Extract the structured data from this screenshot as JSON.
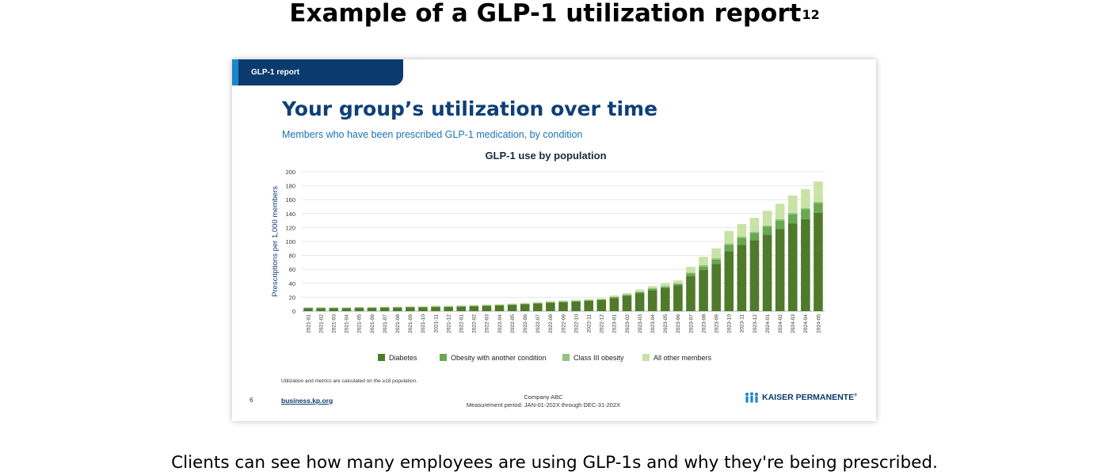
{
  "heading": {
    "text": "Example of a GLP-1 utilization report",
    "superscript": "12"
  },
  "caption": "Clients can see how many employees are using GLP-1s and why they're being prescribed.",
  "slide": {
    "tab_label": "GLP-1 report",
    "title": "Your group’s utilization over time",
    "subtitle": "Members who have been prescribed GLP-1 medication, by condition",
    "footnote": "Utilization and metrics are calculated on the ≥18 population.",
    "page_number": "6",
    "link": "business.kp.org",
    "company": "Company ABC",
    "measurement_period": "Measurement period: JAN-01-202X through DEC-31-202X",
    "logo_text": "KAISER PERMANENTE",
    "logo_mark": "®"
  },
  "chart_data": {
    "type": "bar",
    "stacked": true,
    "title": "GLP-1 use by population",
    "xlabel": "",
    "ylabel": "Prescriptions per 1,000 members",
    "ylim": [
      0,
      200
    ],
    "yticks": [
      0,
      20,
      40,
      60,
      80,
      100,
      120,
      140,
      160,
      180,
      200
    ],
    "grid": true,
    "legend_position": "bottom",
    "categories": [
      "2021-01",
      "2021-02",
      "2021-03",
      "2021-04",
      "2021-05",
      "2021-06",
      "2021-07",
      "2021-08",
      "2021-09",
      "2021-10",
      "2021-11",
      "2021-12",
      "2022-01",
      "2022-02",
      "2022-03",
      "2022-04",
      "2022-05",
      "2022-06",
      "2022-07",
      "2022-08",
      "2022-09",
      "2022-10",
      "2022-11",
      "2022-12",
      "2023-01",
      "2023-02",
      "2023-03",
      "2023-04",
      "2023-05",
      "2023-06",
      "2023-07",
      "2023-08",
      "2023-09",
      "2023-10",
      "2023-11",
      "2023-12",
      "2024-01",
      "2024-02",
      "2024-03",
      "2024-04",
      "2024-05"
    ],
    "series": [
      {
        "name": "Diabetes",
        "color": "#4f7a2a",
        "values": [
          4,
          4,
          4,
          4,
          4.5,
          4.5,
          5,
          5,
          5.5,
          5.5,
          6,
          6,
          6.5,
          7,
          7.5,
          8,
          9,
          10,
          11,
          12,
          13,
          14,
          15,
          16,
          19,
          22,
          26,
          30,
          33,
          37,
          50,
          59,
          68,
          86,
          95,
          102,
          110,
          118,
          126,
          132,
          141
        ]
      },
      {
        "name": "Obesity with another condition",
        "color": "#6aa84f",
        "values": [
          0.5,
          0.5,
          0.5,
          0.5,
          0.5,
          0.5,
          0.5,
          0.5,
          0.5,
          0.5,
          0.5,
          0.5,
          0.5,
          0.5,
          0.5,
          0.5,
          0.5,
          0.5,
          0.5,
          0.5,
          0.5,
          0.5,
          0.5,
          0.5,
          1,
          1.5,
          1.5,
          2,
          2,
          2,
          4,
          5,
          6,
          9,
          10,
          10,
          11,
          12,
          13,
          14,
          14
        ]
      },
      {
        "name": "Class III obesity",
        "color": "#93c47d",
        "values": [
          0.5,
          0.5,
          0.5,
          0.5,
          0.5,
          0.5,
          0.5,
          0.5,
          0.5,
          0.5,
          0.5,
          0.5,
          0.5,
          0.5,
          0.5,
          0.5,
          0.5,
          0.5,
          0.5,
          0.5,
          0.5,
          0.5,
          0.5,
          0.5,
          0.5,
          0.5,
          0.5,
          1,
          1,
          1,
          1.5,
          2,
          2,
          2,
          2,
          2,
          2,
          2,
          2,
          2,
          2
        ]
      },
      {
        "name": "All other members",
        "color": "#c9e2a6",
        "values": [
          0.5,
          0.5,
          0.5,
          0.5,
          0.5,
          0.5,
          0.5,
          0.5,
          0.5,
          0.5,
          1,
          1,
          1,
          1,
          1,
          1,
          1,
          1,
          1,
          1.5,
          1.5,
          1.5,
          1.5,
          1.5,
          2,
          2,
          3,
          3,
          4,
          4,
          8,
          12,
          14,
          18,
          18,
          20,
          21,
          22,
          25,
          27,
          29
        ]
      }
    ]
  }
}
